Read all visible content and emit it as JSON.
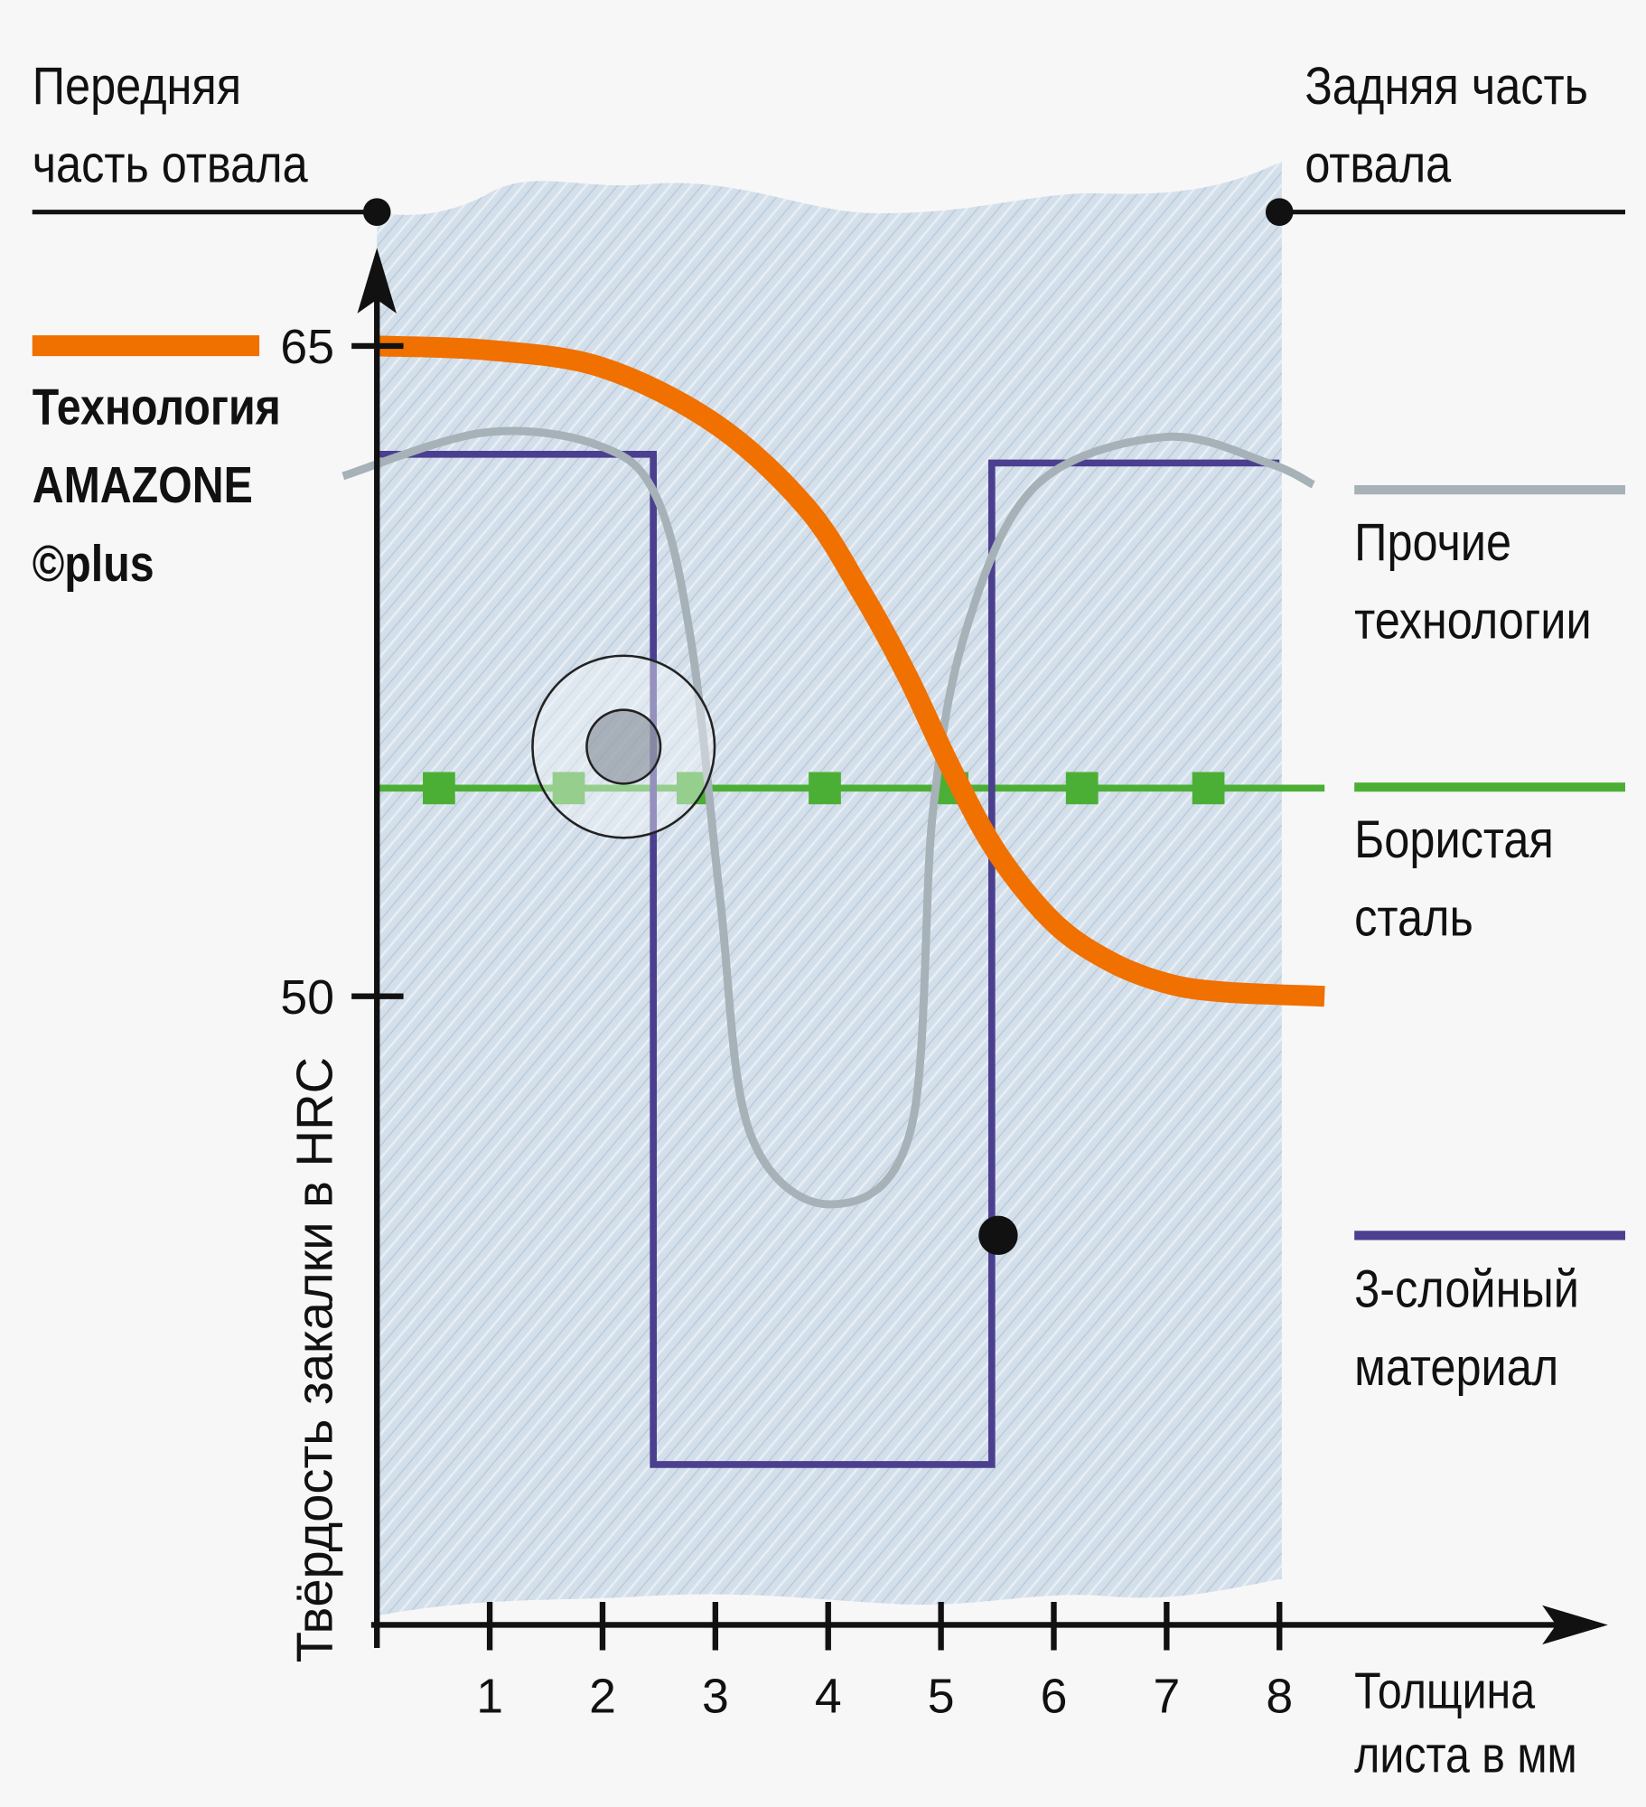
{
  "chart_data": {
    "type": "line",
    "top_left_label": "Передняя часть отвала",
    "top_right_label": "Задняя часть отвала",
    "x_label": "Толщина листа в мм",
    "y_label": "Твёрдость закалки в HRC",
    "xlim": [
      0,
      8
    ],
    "ylim": [
      35.5,
      66.6
    ],
    "xticks": [
      1,
      2,
      3,
      4,
      5,
      6,
      7,
      8
    ],
    "yticks": [
      50,
      65
    ],
    "series": [
      {
        "name": "Технология AMAZONE ©plus",
        "color": "#f07000",
        "smooth": true,
        "x": [
          0,
          1,
          2,
          3,
          3.8,
          4.3,
          4.7,
          5.1,
          5.5,
          6,
          6.5,
          7,
          7.5,
          8.4
        ],
        "values": [
          65,
          64.9,
          64.5,
          63.2,
          61.3,
          59.3,
          57.4,
          55.2,
          53.3,
          51.7,
          50.8,
          50.3,
          50.1,
          50
        ]
      },
      {
        "name": "Прочие технологии",
        "color": "#a7b1b8",
        "smooth": true,
        "x": [
          -0.3,
          0.95,
          1.97,
          2.48,
          2.79,
          3.04,
          3.3,
          4.01,
          4.73,
          4.93,
          5.24,
          5.85,
          6.98,
          7.9,
          8.3
        ],
        "values": [
          62.0,
          63.0,
          62.7,
          61.5,
          58.1,
          52.3,
          46.9,
          45.2,
          46.9,
          54.3,
          58.6,
          61.8,
          62.9,
          62.3,
          61.8
        ]
      },
      {
        "name": "Бористая сталь",
        "color": "#4caf35",
        "smooth": false,
        "x": [
          0,
          0.55,
          1.7,
          2.8,
          3.97,
          5.1,
          6.25,
          7.37,
          8.4
        ],
        "values": [
          54.8,
          54.8,
          54.8,
          54.8,
          54.8,
          54.8,
          54.8,
          54.8,
          54.8
        ]
      },
      {
        "name": "3-слойный материал",
        "color": "#4b3f8f",
        "smooth": false,
        "x": [
          0,
          2.45,
          2.45,
          5.45,
          5.45,
          8
        ],
        "values": [
          62.5,
          62.5,
          39.2,
          39.2,
          62.3,
          62.3
        ]
      }
    ]
  }
}
